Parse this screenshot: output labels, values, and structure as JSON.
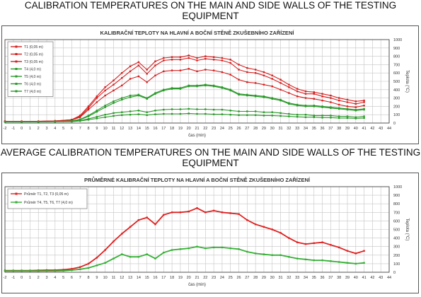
{
  "headings": {
    "top": "CALIBRATION TEMPERATURES ON THE MAIN AND SIDE WALLS OF THE TESTING EQUIPMENT",
    "bottom": "AVERAGE CALIBRATION TEMPERATURES ON THE MAIN AND SIDE WALLS OF THE TESTING EQUIPMENT"
  },
  "chart_data": [
    {
      "type": "line",
      "title": "KALIBRAČNÍ TEPLOTY NA HLAVNÍ A BOČNÍ STĚNĚ ZKUŠEBNÍHO ZAŘÍZENÍ",
      "xlabel": "čas (min)",
      "ylabel": "Teplota (°C)",
      "xlim": [
        -2,
        44
      ],
      "ylim": [
        0,
        1000
      ],
      "x_ticks": [
        -2,
        -1,
        0,
        1,
        2,
        3,
        4,
        5,
        6,
        7,
        8,
        9,
        10,
        11,
        12,
        13,
        14,
        15,
        16,
        17,
        18,
        19,
        20,
        21,
        22,
        23,
        24,
        25,
        26,
        27,
        28,
        29,
        30,
        31,
        32,
        33,
        34,
        35,
        36,
        37,
        38,
        39,
        40,
        41,
        42,
        43,
        44
      ],
      "y_ticks": [
        0,
        100,
        200,
        300,
        400,
        500,
        600,
        700,
        800,
        900,
        1000
      ],
      "grid": true,
      "legend": "top-left",
      "x": [
        -2,
        0,
        2,
        4,
        6,
        7,
        8,
        9,
        10,
        11,
        12,
        13,
        14,
        15,
        16,
        17,
        18,
        19,
        20,
        21,
        22,
        23,
        24,
        25,
        26,
        27,
        28,
        29,
        30,
        31,
        32,
        33,
        34,
        35,
        36,
        37,
        38,
        39,
        40,
        41
      ],
      "series": [
        {
          "name": "T1 (0,05 m)",
          "color": "#d62020",
          "values": [
            20,
            20,
            20,
            25,
            40,
            90,
            200,
            320,
            430,
            510,
            600,
            680,
            730,
            640,
            740,
            780,
            790,
            790,
            810,
            780,
            800,
            790,
            780,
            760,
            700,
            660,
            640,
            610,
            570,
            520,
            460,
            410,
            380,
            370,
            350,
            330,
            300,
            280,
            260,
            270
          ]
        },
        {
          "name": "T2 (0,05 m)",
          "color": "#d62020",
          "values": [
            20,
            20,
            20,
            25,
            40,
            80,
            180,
            300,
            390,
            460,
            540,
            620,
            690,
            590,
            690,
            750,
            760,
            760,
            780,
            750,
            770,
            760,
            750,
            720,
            640,
            610,
            600,
            570,
            530,
            480,
            430,
            380,
            350,
            350,
            320,
            300,
            270,
            250,
            230,
            250
          ]
        },
        {
          "name": "T3 (0,05 m)",
          "color": "#d62020",
          "values": [
            20,
            20,
            20,
            25,
            35,
            70,
            160,
            250,
            330,
            390,
            450,
            530,
            560,
            490,
            570,
            620,
            630,
            630,
            650,
            620,
            640,
            630,
            610,
            580,
            520,
            490,
            480,
            460,
            440,
            400,
            360,
            320,
            300,
            290,
            270,
            250,
            220,
            200,
            190,
            210
          ]
        },
        {
          "name": "T4 (4,0 m)",
          "color": "#2a9a2a",
          "values": [
            15,
            15,
            15,
            18,
            25,
            45,
            90,
            150,
            210,
            260,
            300,
            330,
            340,
            300,
            360,
            400,
            420,
            420,
            450,
            450,
            460,
            450,
            430,
            400,
            350,
            340,
            330,
            320,
            300,
            280,
            240,
            220,
            210,
            210,
            200,
            190,
            180,
            170,
            160,
            170
          ]
        },
        {
          "name": "T5 (4,0 m)",
          "color": "#2a9a2a",
          "values": [
            15,
            15,
            15,
            18,
            22,
            40,
            80,
            135,
            190,
            240,
            280,
            310,
            330,
            290,
            350,
            390,
            410,
            410,
            440,
            440,
            450,
            440,
            420,
            390,
            340,
            330,
            320,
            310,
            290,
            270,
            230,
            210,
            200,
            200,
            190,
            180,
            170,
            160,
            150,
            160
          ]
        },
        {
          "name": "T6 (4,0 m)",
          "color": "#2a9a2a",
          "values": [
            15,
            15,
            15,
            16,
            18,
            30,
            50,
            75,
            100,
            120,
            130,
            140,
            150,
            130,
            150,
            160,
            165,
            165,
            170,
            165,
            165,
            160,
            160,
            150,
            140,
            140,
            140,
            130,
            130,
            120,
            110,
            100,
            100,
            90,
            90,
            90,
            80,
            80,
            70,
            80
          ]
        },
        {
          "name": "T7 (4,0 m)",
          "color": "#2a9a2a",
          "values": [
            15,
            15,
            15,
            16,
            18,
            25,
            40,
            55,
            70,
            85,
            95,
            100,
            105,
            95,
            105,
            110,
            110,
            110,
            115,
            110,
            110,
            105,
            105,
            100,
            95,
            95,
            95,
            90,
            90,
            85,
            80,
            75,
            70,
            70,
            65,
            65,
            60,
            60,
            55,
            60
          ]
        }
      ]
    },
    {
      "type": "line",
      "title": "PRŮMĚRNÉ KALIBRAČNÍ TEPLOTY NA HLAVNÍ A BOČNÍ STĚNĚ ZKUŠEBNÍHO ZAŘÍZENÍ",
      "xlabel": "čas (min)",
      "ylabel": "Teplota (°C)",
      "xlim": [
        -2,
        44
      ],
      "ylim": [
        0,
        1000
      ],
      "x_ticks": [
        -2,
        -1,
        0,
        1,
        2,
        3,
        4,
        5,
        6,
        7,
        8,
        9,
        10,
        11,
        12,
        13,
        14,
        15,
        16,
        17,
        18,
        19,
        20,
        21,
        22,
        23,
        24,
        25,
        26,
        27,
        28,
        29,
        30,
        31,
        32,
        33,
        34,
        35,
        36,
        37,
        38,
        39,
        40,
        41,
        42,
        43,
        44
      ],
      "y_ticks": [
        0,
        100,
        200,
        300,
        400,
        500,
        600,
        700,
        800,
        900,
        1000
      ],
      "grid": true,
      "legend": "top-left",
      "x": [
        -2,
        -1,
        0,
        1,
        2,
        3,
        4,
        5,
        6,
        7,
        8,
        9,
        10,
        11,
        12,
        13,
        14,
        15,
        16,
        17,
        18,
        19,
        20,
        21,
        22,
        23,
        24,
        25,
        26,
        27,
        28,
        29,
        30,
        31,
        32,
        33,
        34,
        35,
        36,
        37,
        38,
        39,
        40,
        41
      ],
      "series": [
        {
          "name": "Průměr T1, T2, T3 (0,05 m)",
          "color": "#e02020",
          "values": [
            20,
            20,
            20,
            20,
            22,
            25,
            25,
            30,
            40,
            60,
            100,
            170,
            260,
            360,
            450,
            530,
            610,
            640,
            560,
            670,
            700,
            700,
            710,
            750,
            700,
            720,
            700,
            690,
            680,
            610,
            560,
            530,
            500,
            460,
            400,
            350,
            330,
            340,
            350,
            320,
            290,
            250,
            220,
            250
          ]
        },
        {
          "name": "Průměr T4, T5, T6, T7 (4,0 m)",
          "color": "#35b035",
          "values": [
            15,
            15,
            15,
            15,
            15,
            16,
            16,
            18,
            25,
            35,
            50,
            80,
            110,
            160,
            210,
            180,
            180,
            210,
            160,
            230,
            260,
            270,
            280,
            300,
            280,
            290,
            290,
            280,
            270,
            240,
            220,
            210,
            200,
            200,
            180,
            160,
            150,
            140,
            140,
            130,
            120,
            110,
            100,
            110
          ]
        }
      ]
    }
  ]
}
